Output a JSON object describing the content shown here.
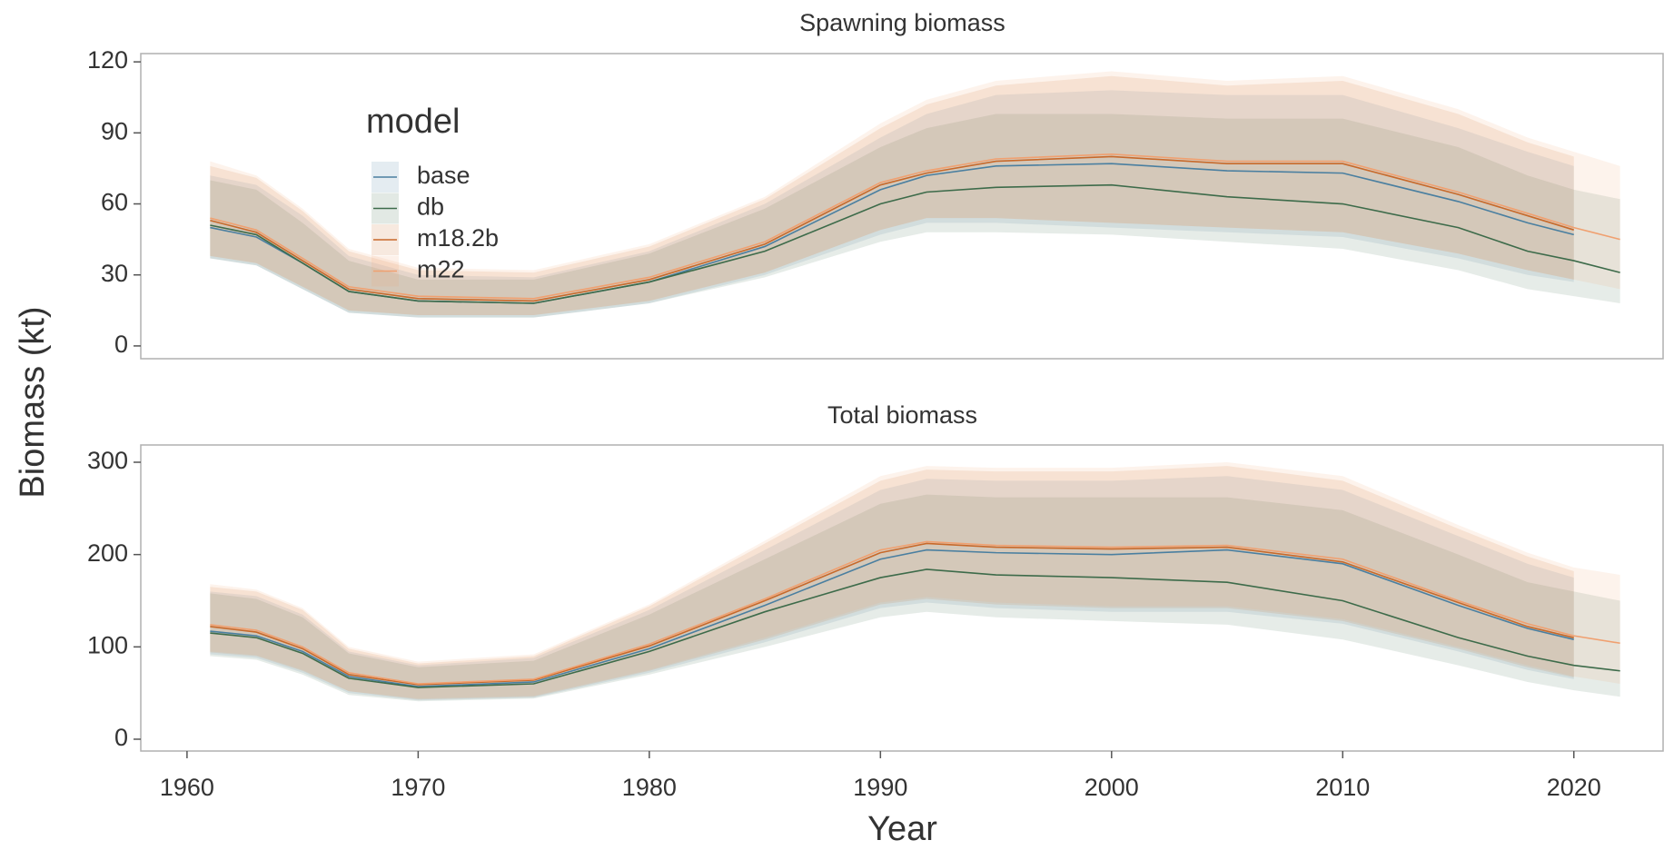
{
  "chart_data": [
    {
      "type": "line",
      "title": "Spawning biomass",
      "ylabel": "Biomass (kt)",
      "legend_title": "model",
      "legend": "top-left",
      "x": [
        1961,
        1963,
        1965,
        1967,
        1970,
        1975,
        1980,
        1985,
        1990,
        1992,
        1995,
        2000,
        2005,
        2010,
        2015,
        2018,
        2020,
        2022
      ],
      "xlim": [
        1958,
        2023.9
      ],
      "ylim": [
        -5.4,
        123.5
      ],
      "yticks": [
        0,
        30,
        60,
        90,
        120
      ],
      "series": [
        {
          "name": "base",
          "color": "#4a7fa0",
          "values": [
            50,
            46,
            35,
            23,
            19,
            18,
            27,
            42,
            66,
            72,
            76,
            77,
            74,
            73,
            61,
            52,
            47,
            null
          ],
          "lower": [
            37,
            34,
            24,
            14,
            12,
            12,
            18,
            30,
            47,
            52,
            52,
            50,
            48,
            46,
            37,
            30,
            27,
            null
          ],
          "upper": [
            72,
            68,
            55,
            38,
            30,
            29,
            40,
            60,
            88,
            98,
            106,
            108,
            106,
            106,
            92,
            82,
            76,
            null
          ]
        },
        {
          "name": "db",
          "color": "#3d6b4a",
          "values": [
            51,
            47,
            35,
            23,
            19,
            18,
            27,
            40,
            60,
            65,
            67,
            68,
            63,
            60,
            50,
            40,
            36,
            31
          ],
          "lower": [
            37,
            34,
            24,
            14,
            12,
            12,
            18,
            29,
            44,
            48,
            48,
            47,
            44,
            41,
            32,
            24,
            21,
            18
          ],
          "upper": [
            70,
            66,
            52,
            36,
            28,
            28,
            39,
            58,
            84,
            92,
            98,
            98,
            96,
            96,
            84,
            72,
            66,
            62
          ]
        },
        {
          "name": "m18.2b",
          "color": "#c8692a",
          "values": [
            53,
            48,
            36,
            24,
            20,
            19,
            28,
            43,
            68,
            73,
            78,
            80,
            77,
            77,
            64,
            55,
            49,
            null
          ],
          "lower": [
            38,
            35,
            25,
            15,
            13,
            13,
            19,
            31,
            49,
            54,
            54,
            52,
            50,
            48,
            39,
            32,
            28,
            null
          ],
          "upper": [
            76,
            71,
            57,
            40,
            32,
            31,
            42,
            62,
            92,
            102,
            110,
            114,
            110,
            112,
            98,
            86,
            80,
            null
          ]
        },
        {
          "name": "m22",
          "color": "#f0a070",
          "values": [
            54,
            49,
            37,
            25,
            21,
            20,
            29,
            44,
            69,
            74,
            79,
            81,
            78,
            78,
            65,
            56,
            50,
            45
          ],
          "lower": [
            38,
            35,
            25,
            15,
            13,
            13,
            19,
            31,
            49,
            54,
            54,
            52,
            50,
            48,
            39,
            32,
            28,
            24
          ],
          "upper": [
            78,
            72,
            58,
            41,
            33,
            32,
            43,
            63,
            94,
            104,
            112,
            116,
            112,
            114,
            100,
            88,
            82,
            76
          ]
        }
      ]
    },
    {
      "type": "line",
      "title": "Total biomass",
      "xlabel": "Year",
      "x": [
        1961,
        1963,
        1965,
        1967,
        1970,
        1975,
        1980,
        1985,
        1990,
        1992,
        1995,
        2000,
        2005,
        2010,
        2015,
        2018,
        2020,
        2022
      ],
      "xlim": [
        1958,
        2023.9
      ],
      "xticks": [
        1960,
        1970,
        1980,
        1990,
        2000,
        2010,
        2020
      ],
      "ylim": [
        -12.8,
        318.7
      ],
      "yticks": [
        0,
        100,
        200,
        300
      ],
      "series": [
        {
          "name": "base",
          "color": "#4a7fa0",
          "values": [
            117,
            112,
            95,
            68,
            57,
            62,
            98,
            145,
            195,
            205,
            202,
            200,
            205,
            190,
            145,
            120,
            108,
            null
          ],
          "lower": [
            92,
            88,
            72,
            50,
            42,
            45,
            72,
            105,
            142,
            148,
            142,
            138,
            138,
            125,
            95,
            75,
            65,
            null
          ],
          "upper": [
            160,
            155,
            135,
            95,
            80,
            88,
            140,
            205,
            270,
            282,
            280,
            280,
            285,
            270,
            220,
            190,
            175,
            null
          ]
        },
        {
          "name": "db",
          "color": "#3d6b4a",
          "values": [
            115,
            110,
            93,
            66,
            56,
            60,
            95,
            138,
            175,
            184,
            178,
            175,
            170,
            150,
            110,
            90,
            80,
            74
          ],
          "lower": [
            90,
            86,
            70,
            48,
            41,
            44,
            70,
            100,
            132,
            138,
            132,
            128,
            124,
            108,
            80,
            62,
            53,
            46
          ],
          "upper": [
            158,
            152,
            132,
            93,
            78,
            85,
            135,
            195,
            255,
            265,
            262,
            262,
            262,
            248,
            200,
            170,
            160,
            150
          ]
        },
        {
          "name": "m18.2b",
          "color": "#c8692a",
          "values": [
            122,
            116,
            98,
            70,
            59,
            64,
            101,
            150,
            202,
            212,
            208,
            206,
            208,
            192,
            148,
            122,
            110,
            null
          ],
          "lower": [
            94,
            90,
            74,
            52,
            43,
            46,
            74,
            108,
            146,
            152,
            146,
            142,
            142,
            128,
            98,
            78,
            67,
            null
          ],
          "upper": [
            165,
            160,
            140,
            98,
            82,
            90,
            144,
            212,
            280,
            292,
            290,
            290,
            296,
            280,
            228,
            198,
            182,
            null
          ]
        },
        {
          "name": "m22",
          "color": "#f0a070",
          "values": [
            124,
            118,
            100,
            72,
            60,
            65,
            103,
            152,
            205,
            214,
            210,
            208,
            210,
            195,
            150,
            125,
            112,
            104
          ],
          "lower": [
            95,
            91,
            75,
            52,
            44,
            47,
            75,
            110,
            148,
            154,
            148,
            144,
            144,
            130,
            100,
            80,
            68,
            60
          ],
          "upper": [
            168,
            162,
            142,
            100,
            84,
            92,
            146,
            215,
            285,
            296,
            294,
            294,
            300,
            285,
            232,
            202,
            186,
            178
          ]
        }
      ]
    }
  ]
}
